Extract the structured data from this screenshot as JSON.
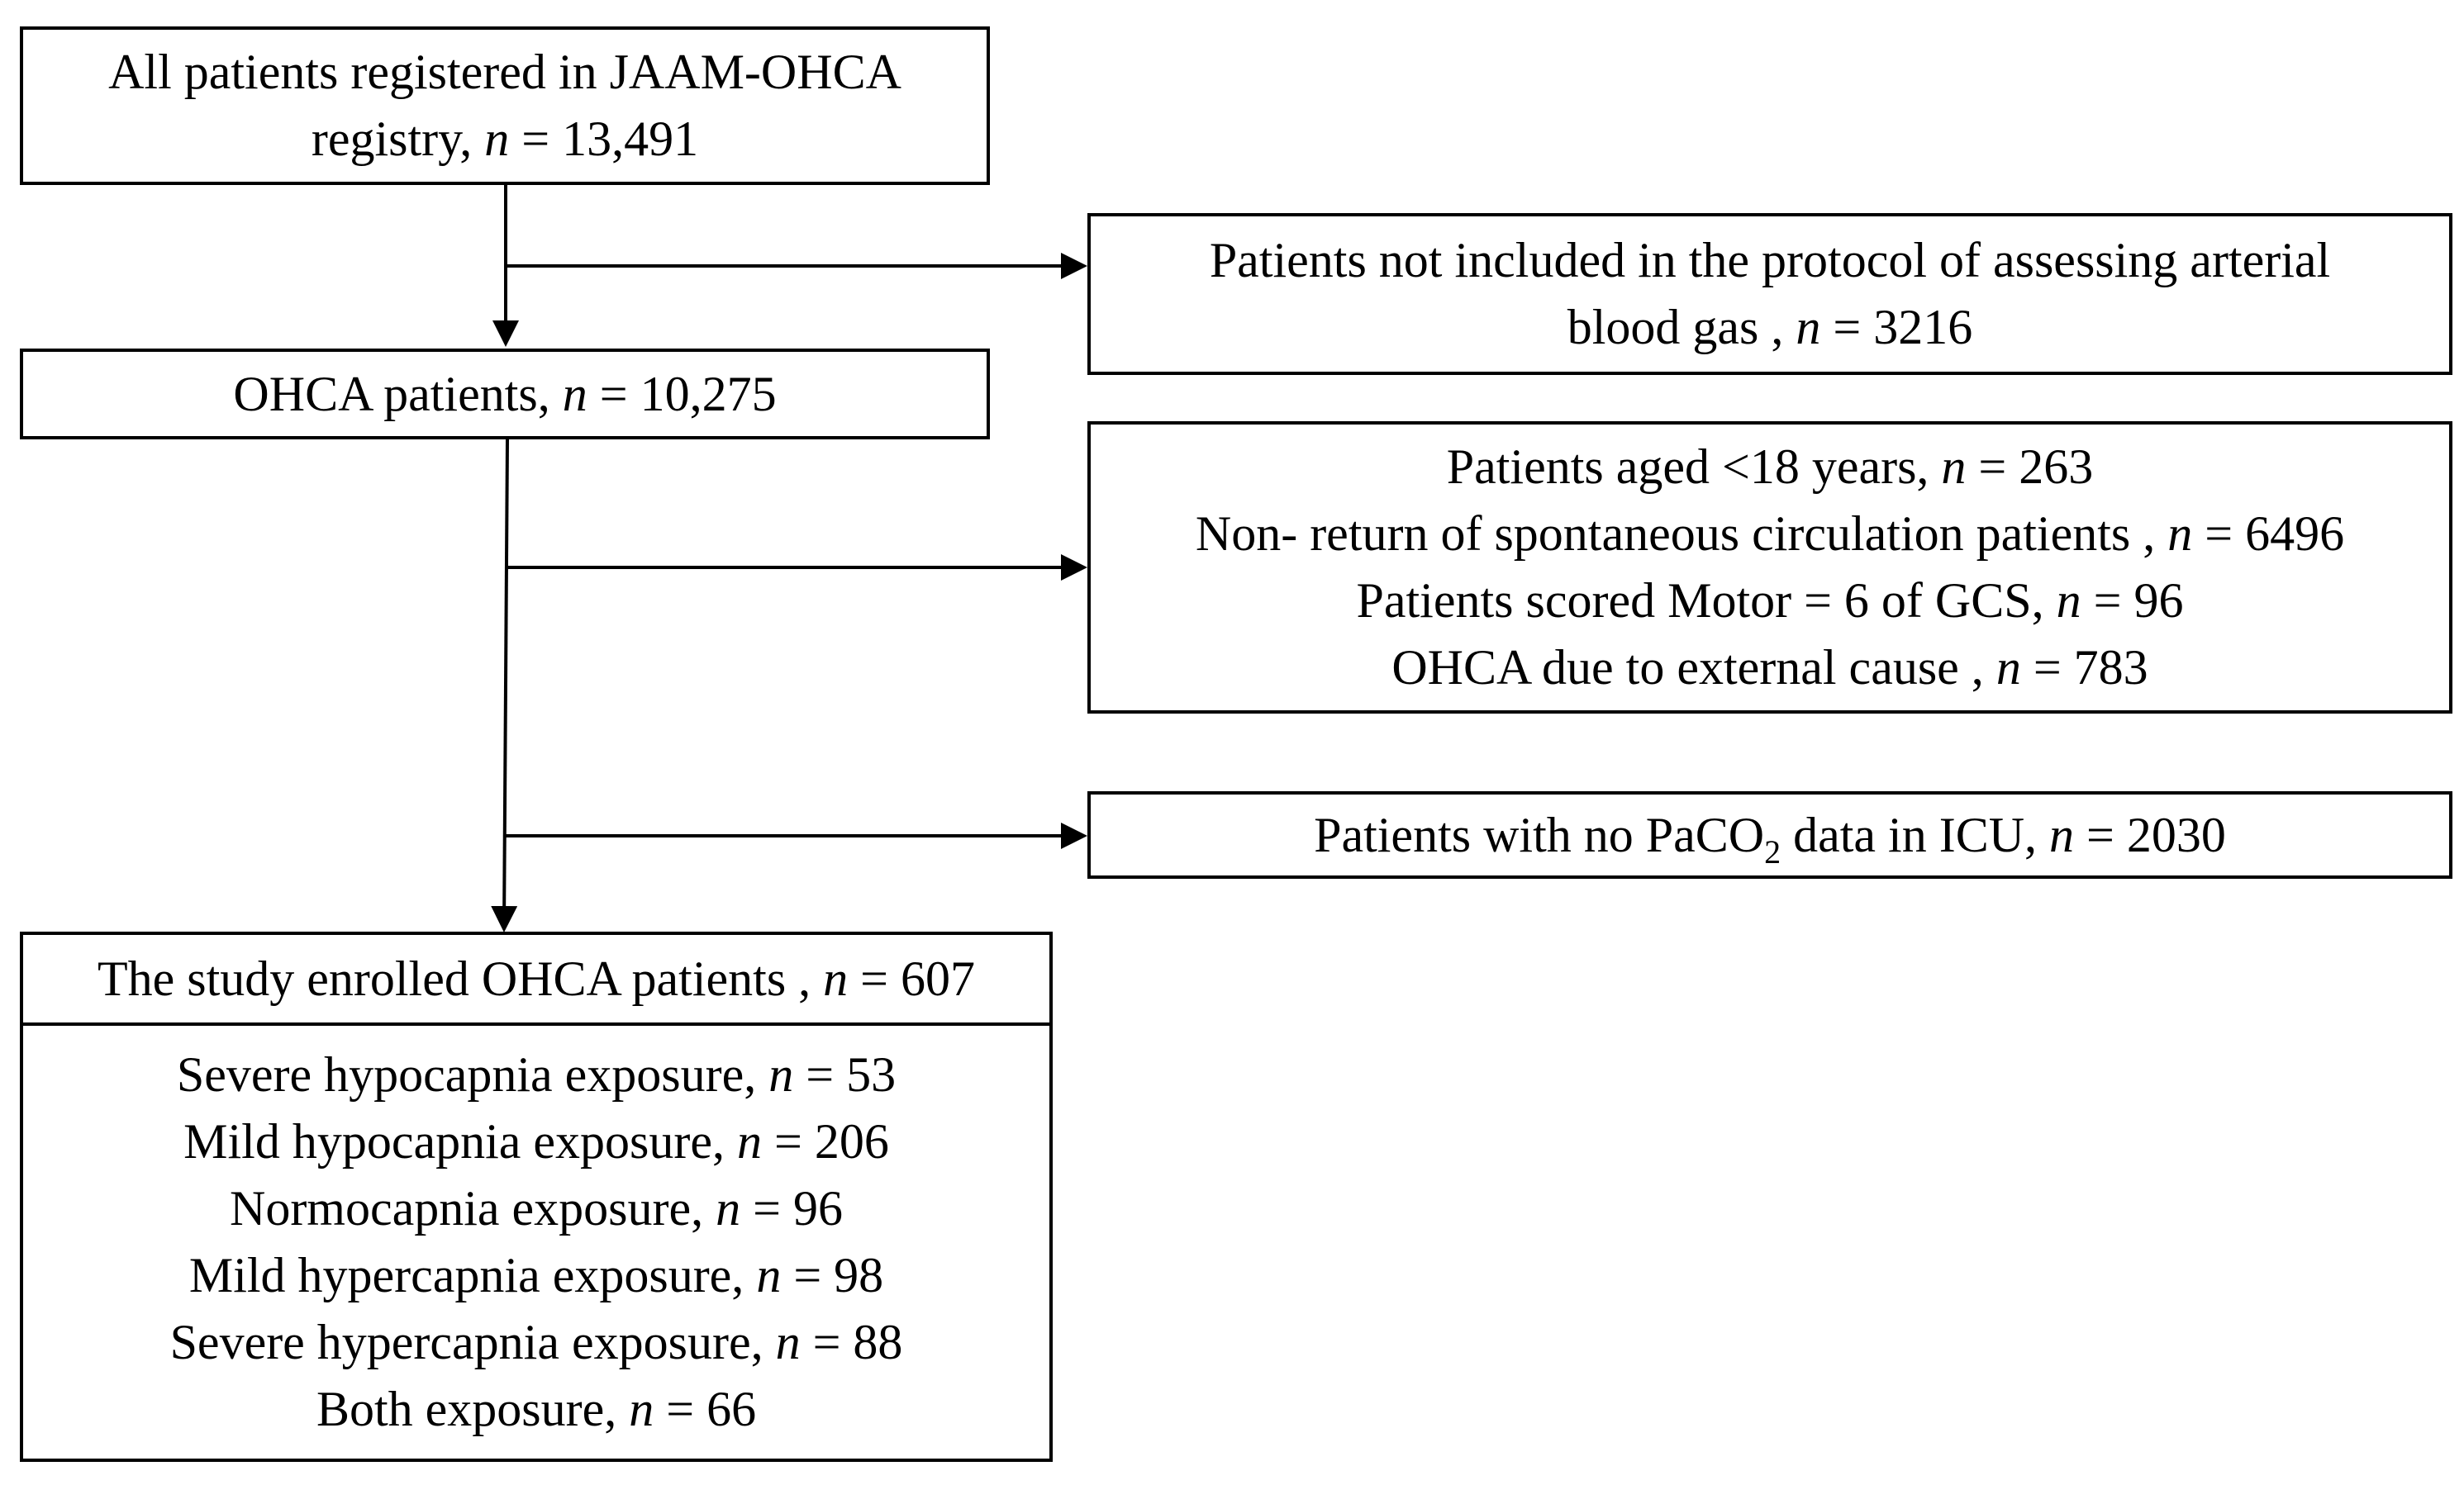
{
  "flow": {
    "registry": {
      "lines": [
        "All patients registered in JAAM-OHCA",
        "registry, "
      ],
      "n": "13,491"
    },
    "excluded_abg": {
      "lines": [
        "Patients not included in the protocol of assessing arterial",
        "blood gas , "
      ],
      "n": "3216"
    },
    "ohca": {
      "label": "OHCA patients, ",
      "n": "10,275"
    },
    "exclusions": [
      {
        "label": "Patients aged <18 years, ",
        "n": "263"
      },
      {
        "label": "Non- return of spontaneous circulation patients , ",
        "n": "6496"
      },
      {
        "label": "Patients scored Motor = 6 of GCS, ",
        "n": "96"
      },
      {
        "label": "OHCA due to external cause , ",
        "n": "783"
      }
    ],
    "no_paco2": {
      "pre": "Patients with no PaCO",
      "sub": "2",
      "post": " data in ICU, ",
      "n": "2030"
    },
    "enrolled": {
      "label": "The study enrolled OHCA patients , ",
      "n": "607",
      "groups": [
        {
          "label": "Severe hypocapnia exposure, ",
          "n": "53"
        },
        {
          "label": "Mild hypocapnia exposure, ",
          "n": "206"
        },
        {
          "label": "Normocapnia exposure, ",
          "n": "96"
        },
        {
          "label": "Mild hypercapnia exposure, ",
          "n": "98"
        },
        {
          "label": "Severe hypercapnia exposure, ",
          "n": "88"
        },
        {
          "label": "Both exposure, ",
          "n": "66"
        }
      ]
    },
    "n_symbol": "n",
    "eq": " = "
  }
}
